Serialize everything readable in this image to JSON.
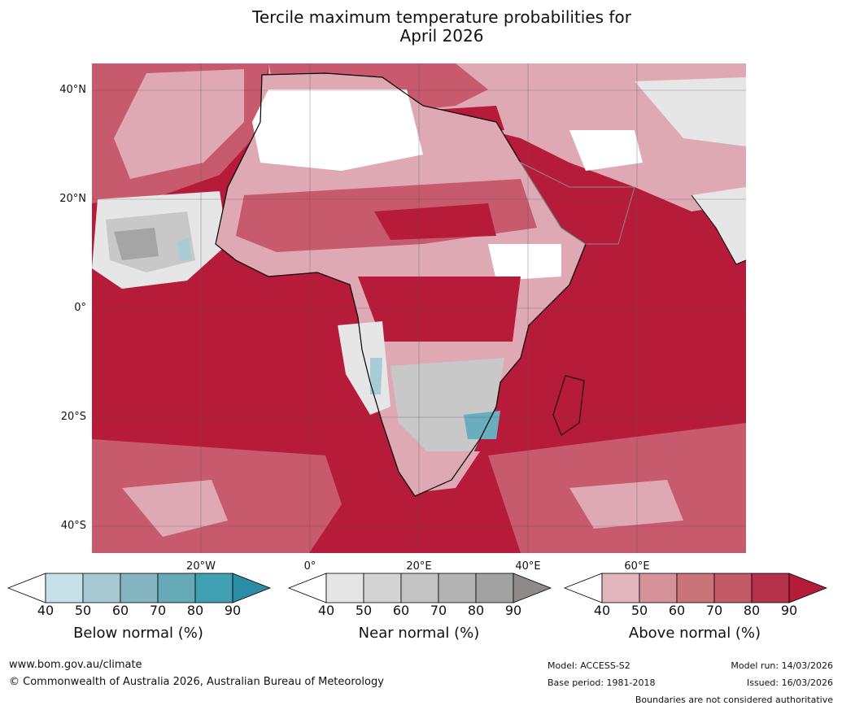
{
  "title": {
    "line1": "Tercile maximum temperature probabilities for",
    "line2": "April 2026"
  },
  "map": {
    "latitude_labels": [
      "40°N",
      "20°N",
      "0°",
      "20°S",
      "40°S"
    ],
    "longitude_labels": [
      "20°W",
      "0°",
      "20°E",
      "40°E",
      "60°E"
    ],
    "colors": {
      "ocean_above_high": "#b61c3a",
      "above_med": "#c85a6d",
      "above_low": "#dfa9b3",
      "near_light": "#e6e6e6",
      "near_med": "#c8c8c8",
      "near_dark": "#a5a5a5",
      "below_light": "#a8ccd6",
      "below_med": "#6aaebe",
      "white": "#ffffff"
    }
  },
  "colorbars": {
    "below": {
      "label": "Below normal (%)",
      "ticks": [
        "40",
        "50",
        "60",
        "70",
        "80",
        "90"
      ],
      "colors": [
        "#ffffff",
        "#c8e1e8",
        "#a6c8d1",
        "#86b5c2",
        "#66a9b7",
        "#419fb2",
        "#2a8ca5"
      ]
    },
    "near": {
      "label": "Near normal (%)",
      "ticks": [
        "40",
        "50",
        "60",
        "70",
        "80",
        "90"
      ],
      "colors": [
        "#ffffff",
        "#e5e5e5",
        "#d3d3d3",
        "#c3c3c3",
        "#b3b3b3",
        "#a2a2a2",
        "#8e8a8a"
      ]
    },
    "above": {
      "label": "Above normal (%)",
      "ticks": [
        "40",
        "50",
        "60",
        "70",
        "80",
        "90"
      ],
      "colors": [
        "#ffffff",
        "#e0b5bb",
        "#d59299",
        "#c97479",
        "#c45a67",
        "#b6324a",
        "#b41c3a"
      ]
    }
  },
  "footer": {
    "website": "www.bom.gov.au/climate",
    "copyright": "© Commonwealth of Australia 2026, Australian Bureau of Meteorology",
    "model": "Model: ACCESS-S2",
    "base_period": "Base period: 1981-2018",
    "model_run": "Model run: 14/03/2026",
    "issued": "Issued: 16/03/2026",
    "disclaimer": "Boundaries are not considered authoritative"
  }
}
